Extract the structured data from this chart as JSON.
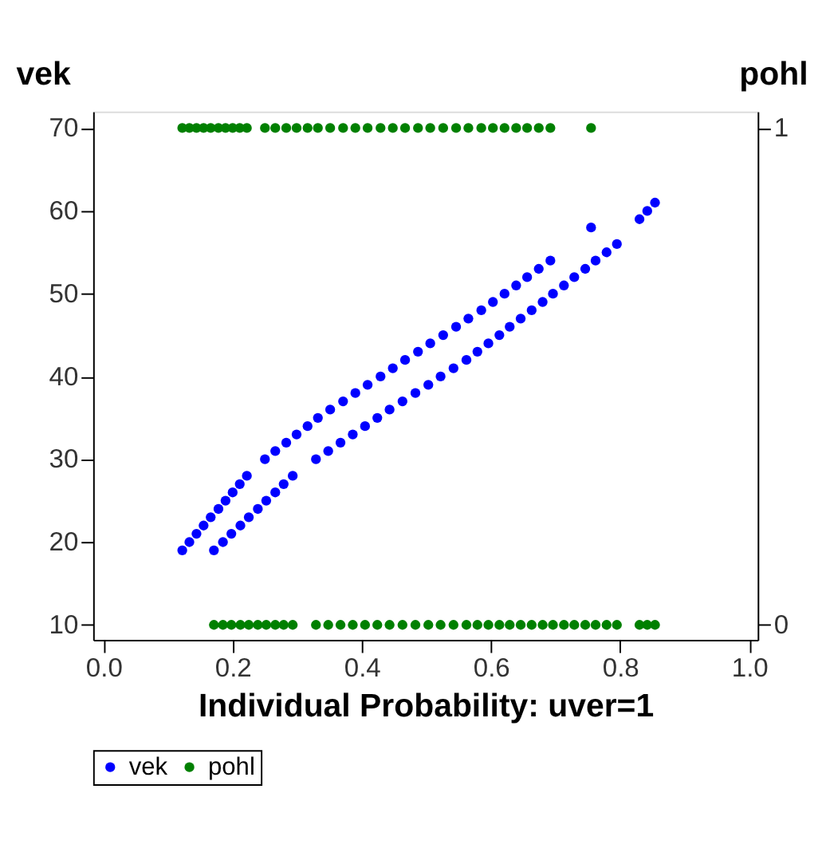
{
  "chart_data": {
    "type": "scatter",
    "xlabel": "Individual Probability: uver=1",
    "ylabel": "vek",
    "y2label": "pohl",
    "xlim": [
      -0.016,
      1.013
    ],
    "xticks": [
      {
        "value": 0,
        "label": "0.0"
      },
      {
        "value": 0.2,
        "label": "0.2"
      },
      {
        "value": 0.4,
        "label": "0.4"
      },
      {
        "value": 0.6,
        "label": "0.6"
      },
      {
        "value": 0.8,
        "label": "0.8"
      },
      {
        "value": 1,
        "label": "1.0"
      }
    ],
    "ylim": [
      8.2,
      72
    ],
    "yticks": [
      10,
      20,
      30,
      40,
      50,
      60,
      70
    ],
    "y2lim": [
      -0.03,
      1.033
    ],
    "y2ticks": [
      0,
      1
    ],
    "marker": "circle",
    "grid": false,
    "legend": "bottom",
    "series": [
      {
        "name": "vek",
        "color": "#0000ff",
        "x": [
          0.122,
          0.133,
          0.144,
          0.155,
          0.166,
          0.178,
          0.189,
          0.2,
          0.211,
          0.222,
          0.25,
          0.266,
          0.283,
          0.299,
          0.316,
          0.332,
          0.351,
          0.371,
          0.39,
          0.409,
          0.429,
          0.448,
          0.467,
          0.487,
          0.506,
          0.526,
          0.546,
          0.565,
          0.585,
          0.603,
          0.621,
          0.639,
          0.656,
          0.674,
          0.692,
          0.755,
          0.171,
          0.185,
          0.198,
          0.212,
          0.225,
          0.239,
          0.252,
          0.266,
          0.279,
          0.293,
          0.329,
          0.348,
          0.367,
          0.386,
          0.405,
          0.424,
          0.443,
          0.463,
          0.483,
          0.503,
          0.522,
          0.542,
          0.562,
          0.579,
          0.596,
          0.613,
          0.629,
          0.646,
          0.663,
          0.68,
          0.696,
          0.713,
          0.729,
          0.746,
          0.762,
          0.779,
          0.795,
          0.83,
          0.842,
          0.854
        ],
        "values": [
          19,
          20,
          21,
          22,
          23,
          24,
          25,
          26,
          27,
          28,
          30,
          31,
          32,
          33,
          34,
          35,
          36,
          37,
          38,
          39,
          40,
          41,
          42,
          43,
          44,
          45,
          46,
          47,
          48,
          49,
          50,
          51,
          52,
          53,
          54,
          58,
          19,
          20,
          21,
          22,
          23,
          24,
          25,
          26,
          27,
          28,
          30,
          31,
          32,
          33,
          34,
          35,
          36,
          37,
          38,
          39,
          40,
          41,
          42,
          43,
          44,
          45,
          46,
          47,
          48,
          49,
          50,
          51,
          52,
          53,
          54,
          55,
          56,
          59,
          60,
          61
        ]
      },
      {
        "name": "pohl",
        "color": "#008000",
        "axis": "y2",
        "x": [
          0.122,
          0.133,
          0.144,
          0.155,
          0.166,
          0.178,
          0.189,
          0.2,
          0.211,
          0.222,
          0.25,
          0.266,
          0.283,
          0.299,
          0.316,
          0.332,
          0.351,
          0.371,
          0.39,
          0.409,
          0.429,
          0.448,
          0.467,
          0.487,
          0.506,
          0.526,
          0.546,
          0.565,
          0.585,
          0.603,
          0.621,
          0.639,
          0.656,
          0.674,
          0.692,
          0.755,
          0.171,
          0.185,
          0.198,
          0.212,
          0.225,
          0.239,
          0.252,
          0.266,
          0.279,
          0.293,
          0.329,
          0.348,
          0.367,
          0.386,
          0.405,
          0.424,
          0.443,
          0.463,
          0.483,
          0.503,
          0.522,
          0.542,
          0.562,
          0.579,
          0.596,
          0.613,
          0.629,
          0.646,
          0.663,
          0.68,
          0.696,
          0.713,
          0.729,
          0.746,
          0.762,
          0.779,
          0.795,
          0.83,
          0.842,
          0.854
        ],
        "values": [
          1,
          1,
          1,
          1,
          1,
          1,
          1,
          1,
          1,
          1,
          1,
          1,
          1,
          1,
          1,
          1,
          1,
          1,
          1,
          1,
          1,
          1,
          1,
          1,
          1,
          1,
          1,
          1,
          1,
          1,
          1,
          1,
          1,
          1,
          1,
          1,
          0,
          0,
          0,
          0,
          0,
          0,
          0,
          0,
          0,
          0,
          0,
          0,
          0,
          0,
          0,
          0,
          0,
          0,
          0,
          0,
          0,
          0,
          0,
          0,
          0,
          0,
          0,
          0,
          0,
          0,
          0,
          0,
          0,
          0,
          0,
          0,
          0,
          0,
          0,
          0
        ]
      }
    ]
  }
}
